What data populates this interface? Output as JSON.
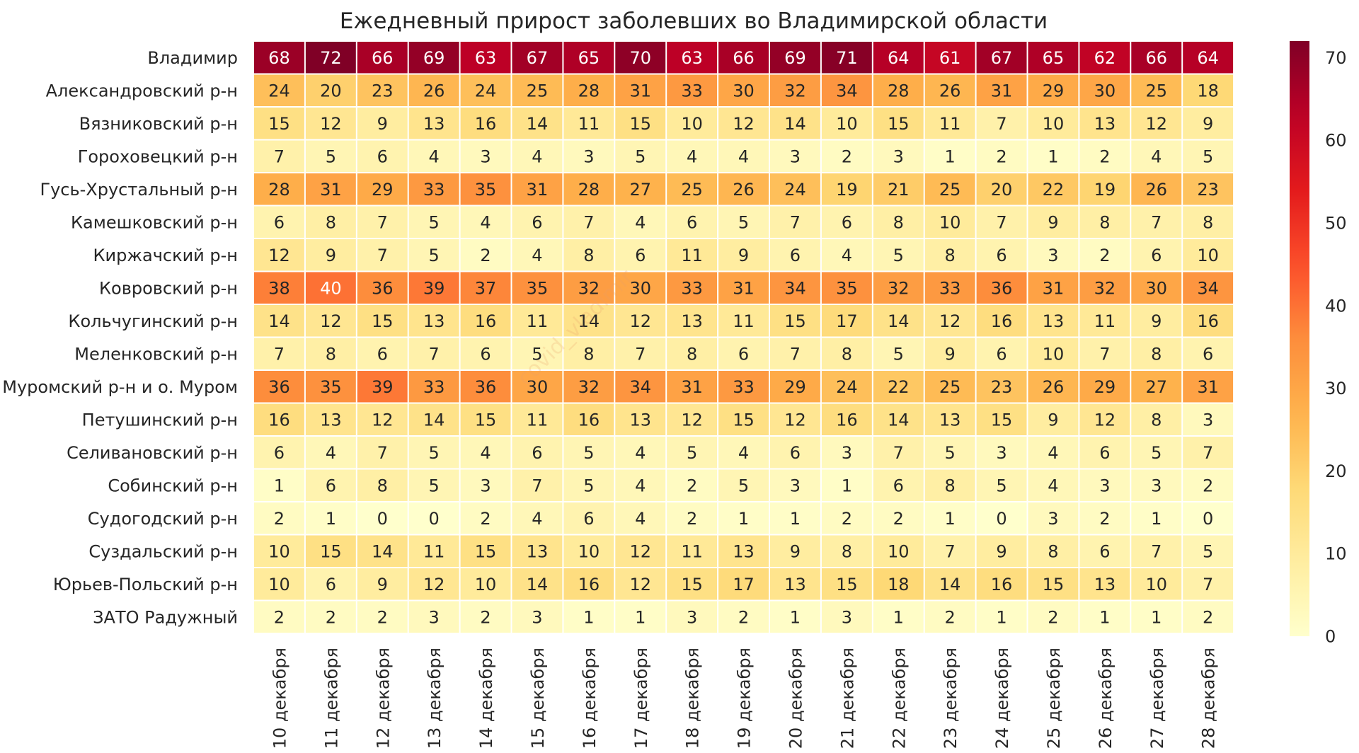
{
  "chart_data": {
    "type": "heatmap",
    "title": "Ежедневный прирост заболевших во Владимирской области",
    "watermark": "covid_vladimir",
    "rows": [
      "Владимир",
      "Александровский р-н",
      "Вязниковский р-н",
      "Гороховецкий р-н",
      "Гусь-Хрустальный р-н",
      "Камешковский р-н",
      "Киржачский р-н",
      "Ковровский р-н",
      "Кольчугинский р-н",
      "Меленковский р-н",
      "Муромский р-н и о. Муром",
      "Петушинский р-н",
      "Селивановский р-н",
      "Собинский р-н",
      "Судогодский р-н",
      "Суздальский р-н",
      "Юрьев-Польский р-н",
      "ЗАТО Радужный"
    ],
    "columns": [
      "10 декабря",
      "11 декабря",
      "12 декабря",
      "13 декабря",
      "14 декабря",
      "15 декабря",
      "16 декабря",
      "17 декабря",
      "18 декабря",
      "19 декабря",
      "20 декабря",
      "21 декабря",
      "22 декабря",
      "23 декабря",
      "24 декабря",
      "25 декабря",
      "26 декабря",
      "27 декабря",
      "28 декабря"
    ],
    "values": [
      [
        68,
        72,
        66,
        69,
        63,
        67,
        65,
        70,
        63,
        66,
        69,
        71,
        64,
        61,
        67,
        65,
        62,
        66,
        64
      ],
      [
        24,
        20,
        23,
        26,
        24,
        25,
        28,
        31,
        33,
        30,
        32,
        34,
        28,
        26,
        31,
        29,
        30,
        25,
        18
      ],
      [
        15,
        12,
        9,
        13,
        16,
        14,
        11,
        15,
        10,
        12,
        14,
        10,
        15,
        11,
        7,
        10,
        13,
        12,
        9
      ],
      [
        7,
        5,
        6,
        4,
        3,
        4,
        3,
        5,
        4,
        4,
        3,
        2,
        3,
        1,
        2,
        1,
        2,
        4,
        5
      ],
      [
        28,
        31,
        29,
        33,
        35,
        31,
        28,
        27,
        25,
        26,
        24,
        19,
        21,
        25,
        20,
        22,
        19,
        26,
        23
      ],
      [
        6,
        8,
        7,
        5,
        4,
        6,
        7,
        4,
        6,
        5,
        7,
        6,
        8,
        10,
        7,
        9,
        8,
        7,
        8
      ],
      [
        12,
        9,
        7,
        5,
        2,
        4,
        8,
        6,
        11,
        9,
        6,
        4,
        5,
        8,
        6,
        3,
        2,
        6,
        10
      ],
      [
        38,
        40,
        36,
        39,
        37,
        35,
        32,
        30,
        33,
        31,
        34,
        35,
        32,
        33,
        36,
        31,
        32,
        30,
        34
      ],
      [
        14,
        12,
        15,
        13,
        16,
        11,
        14,
        12,
        13,
        11,
        15,
        17,
        14,
        12,
        16,
        13,
        11,
        9,
        16
      ],
      [
        7,
        8,
        6,
        7,
        6,
        5,
        8,
        7,
        8,
        6,
        7,
        8,
        5,
        9,
        6,
        10,
        7,
        8,
        6
      ],
      [
        36,
        35,
        39,
        33,
        36,
        30,
        32,
        34,
        31,
        33,
        29,
        24,
        22,
        25,
        23,
        26,
        29,
        27,
        31
      ],
      [
        16,
        13,
        12,
        14,
        15,
        11,
        16,
        13,
        12,
        15,
        12,
        16,
        14,
        13,
        15,
        9,
        12,
        8,
        3
      ],
      [
        6,
        4,
        7,
        5,
        4,
        6,
        5,
        4,
        5,
        4,
        6,
        3,
        7,
        5,
        3,
        4,
        6,
        5,
        7
      ],
      [
        1,
        6,
        8,
        5,
        3,
        7,
        5,
        4,
        2,
        5,
        3,
        1,
        6,
        8,
        5,
        4,
        3,
        3,
        2
      ],
      [
        2,
        1,
        0,
        0,
        2,
        4,
        6,
        4,
        2,
        1,
        1,
        2,
        2,
        1,
        0,
        3,
        2,
        1,
        0
      ],
      [
        10,
        15,
        14,
        11,
        15,
        13,
        10,
        12,
        11,
        13,
        9,
        8,
        10,
        7,
        9,
        8,
        6,
        7,
        5
      ],
      [
        10,
        6,
        9,
        12,
        10,
        14,
        16,
        12,
        15,
        17,
        13,
        15,
        18,
        14,
        16,
        15,
        13,
        10,
        7
      ],
      [
        2,
        2,
        2,
        3,
        2,
        3,
        1,
        1,
        3,
        2,
        1,
        3,
        1,
        2,
        1,
        2,
        1,
        1,
        2
      ]
    ],
    "colorbar": {
      "min": 0,
      "max": 72,
      "ticks": [
        0,
        10,
        20,
        30,
        40,
        50,
        60,
        70
      ],
      "colormap": "YlOrRd"
    }
  }
}
